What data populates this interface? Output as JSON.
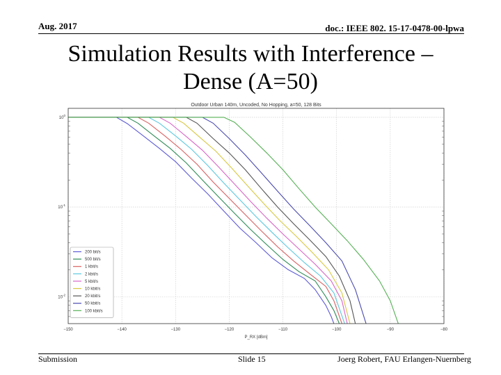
{
  "header": {
    "date": "Aug. 2017",
    "doc": "doc.: IEEE 802. 15-17-0478-00-lpwa"
  },
  "slide": {
    "title": "Simulation Results with Interference – Dense (A=50)"
  },
  "footer": {
    "left": "Submission",
    "center": "Slide 15",
    "right": "Joerg Robert, FAU Erlangen-Nuernberg"
  },
  "chart_data": {
    "type": "line",
    "title": "Outdoor Urban 140m, Uncoded, No Hopping, a=50, 128 Bits",
    "xlabel": "P_RX [dBm]",
    "ylabel": "",
    "xlim": [
      -150,
      -80
    ],
    "ylim_log10": [
      -2.3,
      0.1
    ],
    "y_scale": "log",
    "grid": true,
    "legend_position": "lower-left",
    "x_ticks": [
      -150,
      -140,
      -130,
      -120,
      -110,
      -100,
      -90,
      -80
    ],
    "x_tick_labels": [
      "−150",
      "−140",
      "−130",
      "−120",
      "−110",
      "−100",
      "−90",
      "−80"
    ],
    "y_ticks": [
      {
        "value": 1,
        "base": "10",
        "exp": "0"
      },
      {
        "value": 0.1,
        "base": "10",
        "exp": "-1"
      },
      {
        "value": 0.01,
        "base": "10",
        "exp": "-2"
      }
    ],
    "series": [
      {
        "name": "200 bit/s",
        "color": "#5c5ad6",
        "x": [
          -150,
          -141,
          -139,
          -136,
          -133,
          -130,
          -127,
          -124,
          -121,
          -118,
          -115,
          -112,
          -109,
          -106,
          -104,
          -102,
          -101,
          -100.5
        ],
        "y": [
          1.0,
          1.0,
          0.85,
          0.62,
          0.45,
          0.32,
          0.21,
          0.14,
          0.09,
          0.058,
          0.04,
          0.027,
          0.02,
          0.016,
          0.012,
          0.008,
          0.006,
          0.005
        ]
      },
      {
        "name": "500 bit/s",
        "color": "#2e8b57",
        "x": [
          -150,
          -139,
          -137,
          -134,
          -131,
          -128,
          -125,
          -122,
          -119,
          -116,
          -113,
          -110,
          -107,
          -104,
          -102,
          -100.5,
          -99.5
        ],
        "y": [
          1.0,
          1.0,
          0.86,
          0.62,
          0.45,
          0.31,
          0.2,
          0.13,
          0.085,
          0.056,
          0.038,
          0.026,
          0.019,
          0.015,
          0.01,
          0.007,
          0.005
        ]
      },
      {
        "name": "1 kbit/s",
        "color": "#d96060",
        "x": [
          -150,
          -137,
          -135,
          -132,
          -129,
          -126,
          -123,
          -120,
          -117,
          -114,
          -111,
          -108,
          -105,
          -102,
          -100.5,
          -99
        ],
        "y": [
          1.0,
          1.0,
          0.86,
          0.62,
          0.44,
          0.3,
          0.19,
          0.125,
          0.082,
          0.054,
          0.036,
          0.025,
          0.018,
          0.013,
          0.009,
          0.005
        ]
      },
      {
        "name": "2 kbit/s",
        "color": "#5bc8e0",
        "x": [
          -150,
          -135,
          -133,
          -130,
          -127,
          -124,
          -121,
          -118,
          -115,
          -112,
          -109,
          -106,
          -103,
          -100.5,
          -98.5
        ],
        "y": [
          1.0,
          1.0,
          0.86,
          0.62,
          0.44,
          0.29,
          0.185,
          0.12,
          0.078,
          0.052,
          0.035,
          0.024,
          0.017,
          0.011,
          0.005
        ]
      },
      {
        "name": "5 kbit/s",
        "color": "#d865c8",
        "x": [
          -150,
          -133,
          -131,
          -128,
          -125,
          -122,
          -119,
          -116,
          -113,
          -110,
          -107,
          -104,
          -101,
          -99,
          -98
        ],
        "y": [
          1.0,
          1.0,
          0.86,
          0.61,
          0.43,
          0.28,
          0.18,
          0.115,
          0.075,
          0.05,
          0.034,
          0.023,
          0.015,
          0.009,
          0.005
        ]
      },
      {
        "name": "10 kbit/s",
        "color": "#d8c840",
        "x": [
          -150,
          -130.5,
          -128.5,
          -125.5,
          -122.5,
          -119.5,
          -116.5,
          -113.5,
          -110.5,
          -107.5,
          -104.5,
          -101.5,
          -99,
          -97.5
        ],
        "y": [
          1.0,
          1.0,
          0.86,
          0.6,
          0.42,
          0.27,
          0.17,
          0.108,
          0.07,
          0.047,
          0.031,
          0.02,
          0.011,
          0.005
        ]
      },
      {
        "name": "20 kbit/s",
        "color": "#555555",
        "x": [
          -150,
          -128,
          -126,
          -123,
          -120,
          -117,
          -114,
          -111,
          -108,
          -105,
          -102,
          -99.5,
          -97.5,
          -96.5
        ],
        "y": [
          1.0,
          1.0,
          0.86,
          0.58,
          0.4,
          0.26,
          0.16,
          0.1,
          0.065,
          0.043,
          0.028,
          0.017,
          0.009,
          0.005
        ]
      },
      {
        "name": "50 kbit/s",
        "color": "#4a4ab0",
        "x": [
          -150,
          -125,
          -123,
          -120,
          -117,
          -114,
          -111,
          -108,
          -105,
          -102,
          -99,
          -96.5,
          -94.5
        ],
        "y": [
          1.0,
          1.0,
          0.86,
          0.58,
          0.38,
          0.24,
          0.15,
          0.095,
          0.062,
          0.04,
          0.025,
          0.012,
          0.005
        ]
      },
      {
        "name": "100 kbit/s",
        "color": "#55b055",
        "x": [
          -150,
          -121,
          -119,
          -116,
          -113,
          -110,
          -107,
          -104,
          -101,
          -98,
          -95,
          -92,
          -90,
          -88.5
        ],
        "y": [
          1.0,
          1.0,
          0.88,
          0.6,
          0.4,
          0.26,
          0.16,
          0.1,
          0.065,
          0.042,
          0.026,
          0.015,
          0.009,
          0.005
        ]
      }
    ]
  }
}
